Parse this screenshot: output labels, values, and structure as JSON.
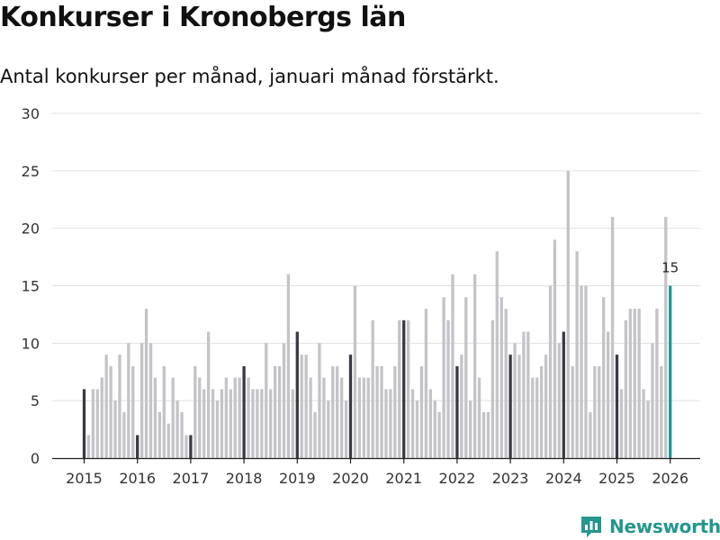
{
  "title": "Konkurser i Kronobergs län",
  "subtitle": "Antal konkurser per månad, januari månad förstärkt.",
  "brand": {
    "name": "Newsworthy",
    "icon": "chart-icon"
  },
  "colors": {
    "january": "#3a3a45",
    "other_month": "#c4c4c8",
    "latest": "#1b9a8e",
    "grid": "#e0e0e0",
    "axis": "#222222",
    "text": "#333333",
    "brand": "#26968e"
  },
  "chart_data": {
    "type": "bar",
    "title": "Konkurser i Kronobergs län",
    "xlabel": "",
    "ylabel": "",
    "ylim": [
      0,
      30
    ],
    "yticks": [
      0,
      5,
      10,
      15,
      20,
      25,
      30
    ],
    "xticks": [
      "2015",
      "2016",
      "2017",
      "2018",
      "2019",
      "2020",
      "2021",
      "2022",
      "2023",
      "2024",
      "2025",
      "2026"
    ],
    "start": "2015-01",
    "grid": true,
    "values": [
      6,
      2,
      6,
      6,
      7,
      9,
      8,
      5,
      9,
      4,
      10,
      8,
      2,
      10,
      13,
      10,
      7,
      4,
      8,
      3,
      7,
      5,
      4,
      2,
      2,
      8,
      7,
      6,
      11,
      6,
      5,
      6,
      7,
      6,
      7,
      7,
      8,
      7,
      6,
      6,
      6,
      10,
      6,
      8,
      8,
      10,
      16,
      6,
      11,
      9,
      9,
      7,
      4,
      10,
      7,
      5,
      8,
      8,
      7,
      5,
      9,
      15,
      7,
      7,
      7,
      12,
      8,
      8,
      6,
      6,
      8,
      12,
      12,
      12,
      6,
      5,
      8,
      13,
      6,
      5,
      4,
      14,
      12,
      16,
      8,
      9,
      14,
      5,
      16,
      7,
      4,
      4,
      12,
      18,
      14,
      13,
      9,
      10,
      9,
      11,
      11,
      7,
      7,
      8,
      9,
      15,
      19,
      10,
      11,
      25,
      8,
      18,
      15,
      15,
      4,
      8,
      8,
      14,
      11,
      21,
      9,
      6,
      12,
      13,
      13,
      13,
      6,
      5,
      10,
      13,
      8,
      21,
      15
    ],
    "highlight": "january",
    "latest_label": "15"
  }
}
